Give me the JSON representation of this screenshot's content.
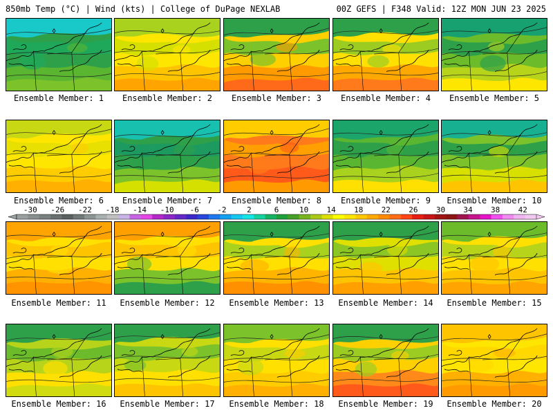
{
  "header": {
    "left": "850mb Temp (°C) | Wind (kts) | College of DuPage NEXLAB",
    "right": "00Z GEFS | F348 Valid: 12Z MON JUN 23 2025"
  },
  "members": [
    {
      "label": "Ensemble Member: 1",
      "theme": [
        "#19c8c8",
        "#1fa85a",
        "#2ea04a",
        "#5ab530",
        "#7cc22a"
      ]
    },
    {
      "label": "Ensemble Member: 2",
      "theme": [
        "#a8d21e",
        "#d6e000",
        "#ffe600",
        "#ffc400",
        "#ffa400"
      ]
    },
    {
      "label": "Ensemble Member: 3",
      "theme": [
        "#2ea04a",
        "#7cc22a",
        "#ffd000",
        "#ff9a00",
        "#ff6a1a"
      ]
    },
    {
      "label": "Ensemble Member: 4",
      "theme": [
        "#2ea04a",
        "#9ccc22",
        "#ffe000",
        "#ffa800",
        "#ff7a1a"
      ]
    },
    {
      "label": "Ensemble Member: 5",
      "theme": [
        "#17a070",
        "#2ea04a",
        "#6cbb2a",
        "#b8d41a",
        "#ffe600"
      ]
    },
    {
      "label": "Ensemble Member: 6",
      "theme": [
        "#c8d812",
        "#e8e000",
        "#ffe600",
        "#ffcc00",
        "#ffb000"
      ]
    },
    {
      "label": "Ensemble Member: 7",
      "theme": [
        "#18c0b0",
        "#1d9a60",
        "#2ea04a",
        "#7cc22a",
        "#d6e000"
      ]
    },
    {
      "label": "Ensemble Member: 8",
      "theme": [
        "#ffcc00",
        "#ffa000",
        "#ff7a1a",
        "#ff5a1a",
        "#ff9a00"
      ]
    },
    {
      "label": "Ensemble Member: 9",
      "theme": [
        "#1ca56a",
        "#2ea04a",
        "#5ab530",
        "#a8d21e",
        "#ffe000"
      ]
    },
    {
      "label": "Ensemble Member: 10",
      "theme": [
        "#17b090",
        "#2ea04a",
        "#7cc22a",
        "#d8e000",
        "#ffc400"
      ]
    },
    {
      "label": "Ensemble Member: 11",
      "theme": [
        "#ffa400",
        "#ffc400",
        "#ffe000",
        "#ffb000",
        "#ff9400"
      ]
    },
    {
      "label": "Ensemble Member: 12",
      "theme": [
        "#ffa000",
        "#ffc400",
        "#ffe000",
        "#7cc22a",
        "#2ea04a"
      ]
    },
    {
      "label": "Ensemble Member: 13",
      "theme": [
        "#2ea04a",
        "#a8d21e",
        "#ffe000",
        "#ffb400",
        "#ff9000"
      ]
    },
    {
      "label": "Ensemble Member: 14",
      "theme": [
        "#2ea04a",
        "#8cc624",
        "#e0e000",
        "#ffc400",
        "#ffa000"
      ]
    },
    {
      "label": "Ensemble Member: 15",
      "theme": [
        "#6cbb2a",
        "#b8d41a",
        "#ffe000",
        "#ffc400",
        "#ffa400"
      ]
    },
    {
      "label": "Ensemble Member: 16",
      "theme": [
        "#2ea04a",
        "#6cbb2a",
        "#b8d41a",
        "#ffe000",
        "#d0dc10"
      ]
    },
    {
      "label": "Ensemble Member: 17",
      "theme": [
        "#2ea04a",
        "#7cc22a",
        "#c8d812",
        "#ffe000",
        "#ffc400"
      ]
    },
    {
      "label": "Ensemble Member: 18",
      "theme": [
        "#7cc22a",
        "#c8d812",
        "#ffe000",
        "#ffcc00",
        "#ffb000"
      ]
    },
    {
      "label": "Ensemble Member: 19",
      "theme": [
        "#2ea04a",
        "#9ccc22",
        "#ffd000",
        "#ff8a1a",
        "#ff5a1a"
      ]
    },
    {
      "label": "Ensemble Member: 20",
      "theme": [
        "#ffc400",
        "#ffd800",
        "#ffe600",
        "#ffb000",
        "#ff9a00"
      ]
    }
  ],
  "colorbar": {
    "ticks": [
      "-30",
      "-26",
      "-22",
      "-18",
      "-14",
      "-10",
      "-6",
      "-2",
      "2",
      "6",
      "10",
      "14",
      "18",
      "22",
      "26",
      "30",
      "34",
      "38",
      "42"
    ],
    "colors": [
      "#9aa0a0",
      "#8a9090",
      "#788080",
      "#6a7070",
      "#5a6060",
      "#707878",
      "#8c9494",
      "#a8b0b0",
      "#c0c0c0",
      "#c8b4e6",
      "#c864e6",
      "#e646e6",
      "#b428c8",
      "#8c28c8",
      "#6428c8",
      "#3c28c8",
      "#2846dc",
      "#1e78f0",
      "#14a0f0",
      "#14c8f0",
      "#14e6e6",
      "#14d2a0",
      "#14b464",
      "#1ea03c",
      "#46a028",
      "#78b41e",
      "#aac814",
      "#dce000",
      "#ffff00",
      "#ffe600",
      "#ffc800",
      "#ffa800",
      "#ff8c00",
      "#ff6e14",
      "#ff4614",
      "#e61e14",
      "#c81414",
      "#a01414",
      "#8c1414",
      "#a01450",
      "#c8148c",
      "#e614c8",
      "#f050f0",
      "#f08cf0",
      "#f0b4f0",
      "#f0c8f0"
    ]
  }
}
